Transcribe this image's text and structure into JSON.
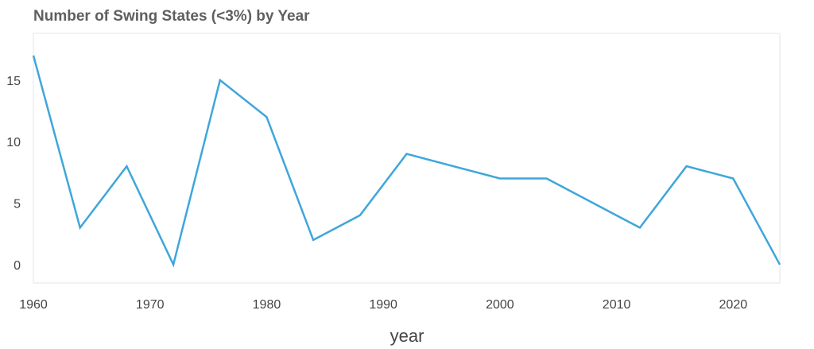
{
  "chart_data": {
    "type": "line",
    "title": "Number of Swing States (<3%) by Year",
    "xlabel": "year",
    "ylabel": "",
    "xlim": [
      1960,
      2024
    ],
    "ylim": [
      -1.5,
      18.8
    ],
    "x_ticks": [
      1960,
      1970,
      1980,
      1990,
      2000,
      2010,
      2020
    ],
    "y_ticks": [
      0,
      5,
      10,
      15
    ],
    "grid": false,
    "legend": "none",
    "line_color": "#3ea6db",
    "series": [
      {
        "x": [
          1960,
          1964,
          1968,
          1972,
          1976,
          1980,
          1984,
          1988,
          1992,
          1996,
          2000,
          2004,
          2008,
          2012,
          2016,
          2020,
          2024
        ],
        "values": [
          17,
          3,
          8,
          0,
          15,
          12,
          2,
          4,
          9,
          8,
          7,
          7,
          5,
          3,
          8,
          7,
          0
        ]
      }
    ]
  }
}
